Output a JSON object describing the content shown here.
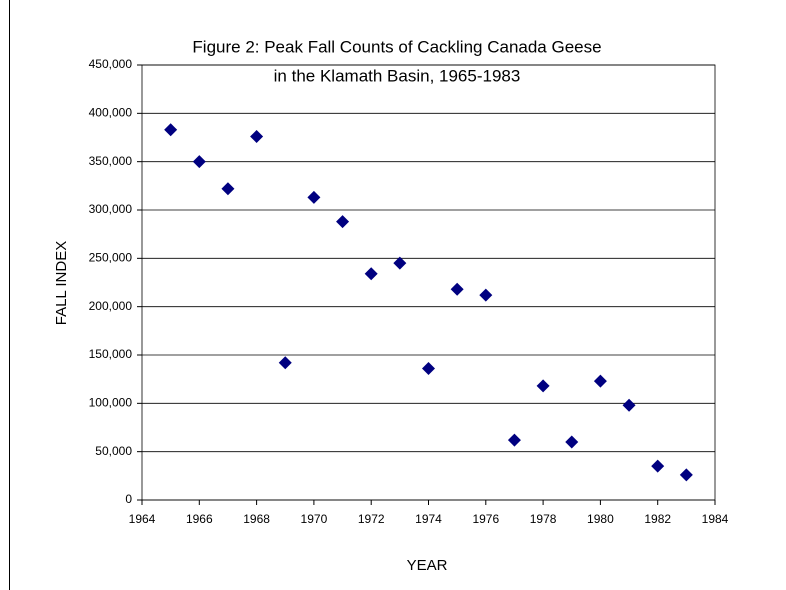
{
  "chart_data": {
    "type": "scatter",
    "title": [
      "Figure 2:  Peak Fall Counts of Cackling Canada Geese",
      "in the Klamath Basin, 1965-1983"
    ],
    "x_label": "YEAR",
    "y_label": "FALL INDEX",
    "series": [
      {
        "name": "Peak Fall Count",
        "color": "#000080",
        "x": [
          1965,
          1966,
          1967,
          1968,
          1969,
          1970,
          1971,
          1972,
          1973,
          1974,
          1975,
          1976,
          1977,
          1978,
          1979,
          1980,
          1981,
          1982,
          1983
        ],
        "values": [
          383000,
          350000,
          322000,
          376000,
          142000,
          313000,
          288000,
          234000,
          245000,
          136000,
          218000,
          212000,
          62000,
          118000,
          60000,
          123000,
          98000,
          35000,
          26000
        ]
      }
    ],
    "xlim": [
      1964,
      1984
    ],
    "xticks": [
      1964,
      1966,
      1968,
      1970,
      1972,
      1974,
      1976,
      1978,
      1980,
      1982,
      1984
    ],
    "ylim": [
      0,
      450000
    ],
    "yticks": [
      0,
      {
        "value": 50000,
        "label": "50,000"
      },
      {
        "value": 100000,
        "label": "100,000"
      },
      {
        "value": 150000,
        "label": "150,000"
      },
      {
        "value": 200000,
        "label": "200,000"
      },
      {
        "value": 250000,
        "label": "250,000"
      },
      {
        "value": 300000,
        "label": "300,000"
      },
      {
        "value": 350000,
        "label": "350,000"
      },
      {
        "value": 400000,
        "label": "400,000"
      },
      {
        "value": 450000,
        "label": "450,000"
      }
    ],
    "grid": true
  }
}
